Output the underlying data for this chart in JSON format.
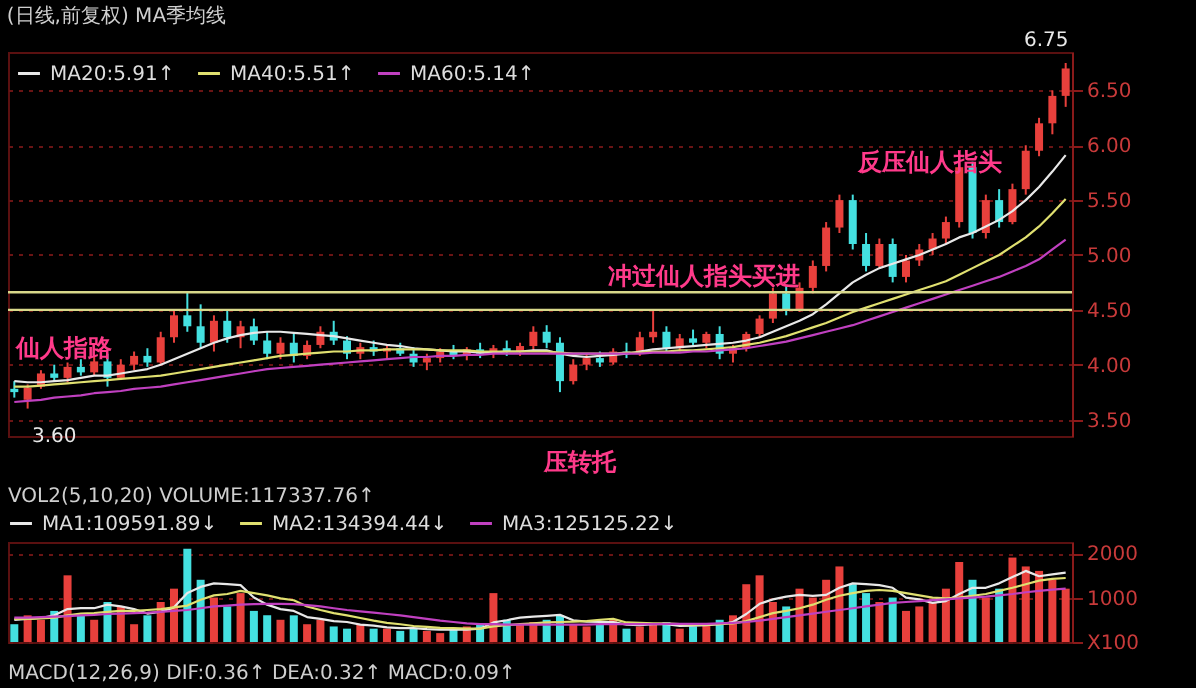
{
  "chart_data": [
    {
      "type": "candlestick",
      "title": "(日线,前复权) MA季均线",
      "categories": [
        null,
        null,
        null,
        null,
        null,
        null,
        null,
        null,
        null,
        null,
        null,
        null,
        null,
        null,
        null,
        null,
        null,
        null,
        null,
        null,
        null,
        null,
        null,
        null,
        null,
        null,
        null,
        null,
        null,
        null,
        null,
        null,
        null,
        null,
        null,
        null,
        null,
        null,
        null,
        null,
        null,
        null,
        null,
        null,
        null,
        null,
        null,
        null,
        null,
        null,
        null,
        null,
        null,
        null,
        null,
        null,
        null,
        null,
        null,
        null,
        null,
        null,
        null,
        null,
        null,
        null,
        null,
        null,
        null,
        null,
        null,
        null,
        null,
        null,
        null,
        null,
        null,
        null,
        null,
        null
      ],
      "ohlc": [
        [
          3.78,
          3.85,
          3.7,
          3.75
        ],
        [
          3.68,
          3.82,
          3.6,
          3.79
        ],
        [
          3.8,
          3.95,
          3.78,
          3.92
        ],
        [
          3.92,
          4.0,
          3.85,
          3.88
        ],
        [
          3.88,
          4.02,
          3.84,
          3.98
        ],
        [
          3.98,
          4.05,
          3.9,
          3.93
        ],
        [
          3.93,
          4.08,
          3.9,
          4.03
        ],
        [
          4.03,
          4.1,
          3.8,
          3.88
        ],
        [
          3.88,
          4.05,
          3.86,
          4.0
        ],
        [
          4.0,
          4.12,
          3.95,
          4.08
        ],
        [
          4.08,
          4.15,
          3.98,
          4.02
        ],
        [
          4.02,
          4.3,
          4.0,
          4.25
        ],
        [
          4.25,
          4.5,
          4.2,
          4.45
        ],
        [
          4.45,
          4.67,
          4.3,
          4.35
        ],
        [
          4.35,
          4.55,
          4.15,
          4.2
        ],
        [
          4.2,
          4.45,
          4.12,
          4.4
        ],
        [
          4.4,
          4.5,
          4.2,
          4.25
        ],
        [
          4.25,
          4.4,
          4.15,
          4.35
        ],
        [
          4.35,
          4.42,
          4.18,
          4.22
        ],
        [
          4.22,
          4.3,
          4.05,
          4.1
        ],
        [
          4.1,
          4.25,
          4.05,
          4.2
        ],
        [
          4.2,
          4.28,
          4.02,
          4.08
        ],
        [
          4.08,
          4.22,
          4.05,
          4.18
        ],
        [
          4.18,
          4.35,
          4.15,
          4.3
        ],
        [
          4.3,
          4.4,
          4.18,
          4.22
        ],
        [
          4.22,
          4.26,
          4.05,
          4.1
        ],
        [
          4.1,
          4.2,
          4.05,
          4.16
        ],
        [
          4.16,
          4.22,
          4.08,
          4.12
        ],
        [
          4.12,
          4.18,
          4.05,
          4.15
        ],
        [
          4.15,
          4.2,
          4.08,
          4.1
        ],
        [
          4.1,
          4.16,
          3.98,
          4.02
        ],
        [
          4.02,
          4.1,
          3.95,
          4.06
        ],
        [
          4.06,
          4.15,
          4.02,
          4.12
        ],
        [
          4.12,
          4.18,
          4.05,
          4.08
        ],
        [
          4.08,
          4.16,
          4.04,
          4.14
        ],
        [
          4.14,
          4.2,
          4.06,
          4.1
        ],
        [
          4.1,
          4.18,
          4.06,
          4.15
        ],
        [
          4.15,
          4.22,
          4.08,
          4.12
        ],
        [
          4.12,
          4.2,
          4.08,
          4.17
        ],
        [
          4.17,
          4.35,
          4.12,
          4.3
        ],
        [
          4.3,
          4.36,
          4.15,
          4.2
        ],
        [
          4.2,
          4.25,
          3.75,
          3.85
        ],
        [
          3.85,
          4.05,
          3.82,
          4.0
        ],
        [
          4.0,
          4.1,
          3.95,
          4.06
        ],
        [
          4.06,
          4.12,
          3.98,
          4.02
        ],
        [
          4.02,
          4.15,
          4.0,
          4.12
        ],
        [
          4.12,
          4.2,
          4.06,
          4.1
        ],
        [
          4.1,
          4.3,
          4.08,
          4.25
        ],
        [
          4.25,
          4.5,
          4.2,
          4.3
        ],
        [
          4.3,
          4.35,
          4.12,
          4.15
        ],
        [
          4.15,
          4.28,
          4.12,
          4.24
        ],
        [
          4.24,
          4.32,
          4.18,
          4.2
        ],
        [
          4.2,
          4.3,
          4.15,
          4.28
        ],
        [
          4.28,
          4.35,
          4.05,
          4.1
        ],
        [
          4.1,
          4.18,
          4.02,
          4.15
        ],
        [
          4.15,
          4.3,
          4.12,
          4.28
        ],
        [
          4.28,
          4.45,
          4.25,
          4.42
        ],
        [
          4.42,
          4.7,
          4.38,
          4.65
        ],
        [
          4.65,
          4.72,
          4.45,
          4.5
        ],
        [
          4.5,
          4.75,
          4.48,
          4.7
        ],
        [
          4.7,
          4.95,
          4.65,
          4.9
        ],
        [
          4.9,
          5.3,
          4.85,
          5.25
        ],
        [
          5.25,
          5.55,
          5.2,
          5.5
        ],
        [
          5.5,
          5.55,
          5.05,
          5.1
        ],
        [
          5.1,
          5.2,
          4.85,
          4.9
        ],
        [
          4.9,
          5.15,
          4.88,
          5.1
        ],
        [
          5.1,
          5.15,
          4.75,
          4.8
        ],
        [
          4.8,
          5.0,
          4.75,
          4.95
        ],
        [
          4.95,
          5.1,
          4.9,
          5.05
        ],
        [
          5.05,
          5.2,
          5.0,
          5.15
        ],
        [
          5.15,
          5.35,
          5.1,
          5.3
        ],
        [
          5.3,
          5.85,
          5.25,
          5.8
        ],
        [
          5.8,
          5.85,
          5.15,
          5.2
        ],
        [
          5.2,
          5.55,
          5.15,
          5.5
        ],
        [
          5.5,
          5.6,
          5.25,
          5.3
        ],
        [
          5.3,
          5.65,
          5.28,
          5.6
        ],
        [
          5.6,
          6.0,
          5.55,
          5.95
        ],
        [
          5.95,
          6.25,
          5.9,
          6.2
        ],
        [
          6.2,
          6.5,
          6.1,
          6.45
        ],
        [
          6.45,
          6.75,
          6.35,
          6.7
        ]
      ],
      "colors": [
        "#44e0e0",
        "#e8403c",
        "#e8403c",
        "#44e0e0",
        "#e8403c",
        "#44e0e0",
        "#e8403c",
        "#44e0e0",
        "#e8403c",
        "#e8403c",
        "#44e0e0",
        "#e8403c",
        "#e8403c",
        "#44e0e0",
        "#44e0e0",
        "#e8403c",
        "#44e0e0",
        "#e8403c",
        "#44e0e0",
        "#44e0e0",
        "#e8403c",
        "#44e0e0",
        "#e8403c",
        "#e8403c",
        "#44e0e0",
        "#44e0e0",
        "#e8403c",
        "#44e0e0",
        "#e8403c",
        "#44e0e0",
        "#44e0e0",
        "#e8403c",
        "#e8403c",
        "#44e0e0",
        "#e8403c",
        "#44e0e0",
        "#e8403c",
        "#44e0e0",
        "#e8403c",
        "#e8403c",
        "#44e0e0",
        "#44e0e0",
        "#e8403c",
        "#e8403c",
        "#44e0e0",
        "#e8403c",
        "#44e0e0",
        "#e8403c",
        "#e8403c",
        "#44e0e0",
        "#e8403c",
        "#44e0e0",
        "#e8403c",
        "#44e0e0",
        "#e8403c",
        "#e8403c",
        "#e8403c",
        "#e8403c",
        "#44e0e0",
        "#e8403c",
        "#e8403c",
        "#e8403c",
        "#e8403c",
        "#44e0e0",
        "#44e0e0",
        "#e8403c",
        "#44e0e0",
        "#e8403c",
        "#e8403c",
        "#e8403c",
        "#e8403c",
        "#e8403c",
        "#44e0e0",
        "#e8403c",
        "#44e0e0",
        "#e8403c",
        "#e8403c",
        "#e8403c",
        "#e8403c",
        "#e8403c"
      ],
      "series": [
        {
          "name": "MA20:5.91↑",
          "type": "line",
          "color": "#e8e8e8",
          "values": [
            3.85,
            3.84,
            3.84,
            3.85,
            3.86,
            3.88,
            3.9,
            3.9,
            3.92,
            3.94,
            3.96,
            4.0,
            4.05,
            4.1,
            4.15,
            4.2,
            4.24,
            4.27,
            4.29,
            4.3,
            4.3,
            4.29,
            4.28,
            4.27,
            4.26,
            4.24,
            4.22,
            4.2,
            4.18,
            4.17,
            4.15,
            4.14,
            4.13,
            4.12,
            4.12,
            4.11,
            4.11,
            4.12,
            4.12,
            4.13,
            4.13,
            4.1,
            4.08,
            4.07,
            4.08,
            4.09,
            4.1,
            4.12,
            4.14,
            4.15,
            4.16,
            4.17,
            4.18,
            4.19,
            4.2,
            4.22,
            4.25,
            4.3,
            4.35,
            4.4,
            4.46,
            4.55,
            4.65,
            4.75,
            4.82,
            4.88,
            4.92,
            4.96,
            5.0,
            5.05,
            5.1,
            5.16,
            5.2,
            5.26,
            5.32,
            5.4,
            5.5,
            5.62,
            5.76,
            5.91
          ]
        },
        {
          "name": "MA40:5.51↑",
          "type": "line",
          "color": "#e0e070",
          "values": [
            3.8,
            3.8,
            3.81,
            3.82,
            3.83,
            3.84,
            3.85,
            3.86,
            3.87,
            3.88,
            3.89,
            3.9,
            3.92,
            3.94,
            3.96,
            3.98,
            4.0,
            4.02,
            4.04,
            4.06,
            4.08,
            4.09,
            4.1,
            4.11,
            4.12,
            4.12,
            4.13,
            4.13,
            4.14,
            4.14,
            4.14,
            4.14,
            4.13,
            4.13,
            4.13,
            4.12,
            4.12,
            4.12,
            4.12,
            4.12,
            4.12,
            4.11,
            4.1,
            4.1,
            4.1,
            4.1,
            4.11,
            4.11,
            4.12,
            4.12,
            4.13,
            4.13,
            4.14,
            4.15,
            4.16,
            4.18,
            4.2,
            4.23,
            4.26,
            4.3,
            4.34,
            4.38,
            4.43,
            4.48,
            4.52,
            4.56,
            4.6,
            4.64,
            4.68,
            4.72,
            4.76,
            4.82,
            4.88,
            4.94,
            5.0,
            5.08,
            5.16,
            5.26,
            5.38,
            5.51
          ]
        },
        {
          "name": "MA60:5.14↑",
          "type": "line",
          "color": "#c040c0",
          "values": [
            3.66,
            3.67,
            3.68,
            3.7,
            3.71,
            3.72,
            3.74,
            3.75,
            3.76,
            3.78,
            3.79,
            3.8,
            3.82,
            3.84,
            3.86,
            3.88,
            3.9,
            3.92,
            3.94,
            3.96,
            3.97,
            3.98,
            3.99,
            4.0,
            4.01,
            4.02,
            4.03,
            4.04,
            4.05,
            4.06,
            4.07,
            4.07,
            4.08,
            4.08,
            4.09,
            4.09,
            4.1,
            4.1,
            4.1,
            4.1,
            4.1,
            4.1,
            4.1,
            4.1,
            4.1,
            4.1,
            4.1,
            4.1,
            4.11,
            4.11,
            4.11,
            4.12,
            4.12,
            4.13,
            4.14,
            4.15,
            4.17,
            4.19,
            4.21,
            4.24,
            4.27,
            4.3,
            4.33,
            4.36,
            4.4,
            4.44,
            4.48,
            4.52,
            4.56,
            4.6,
            4.64,
            4.68,
            4.72,
            4.76,
            4.8,
            4.85,
            4.9,
            4.96,
            5.05,
            5.14
          ]
        }
      ],
      "ylim": [
        3.35,
        6.85
      ],
      "yticks": [
        {
          "value": 3.5,
          "label": "3.50"
        },
        {
          "value": 4,
          "label": "4.00"
        },
        {
          "value": 4.5,
          "label": "4.50"
        },
        {
          "value": 5,
          "label": "5.00"
        },
        {
          "value": 5.5,
          "label": "5.50"
        },
        {
          "value": 6,
          "label": "6.00"
        },
        {
          "value": 6.5,
          "label": "6.50"
        }
      ],
      "ref_lines": [
        {
          "axis": "y",
          "value": 4.66,
          "color": "#d8d88a"
        },
        {
          "axis": "y",
          "value": 4.5,
          "color": "#d8d88a"
        }
      ],
      "annotations": [
        "仙人指路",
        "冲过仙人指头买进",
        "反压仙人指头",
        "压转托",
        "3.60",
        "6.75"
      ],
      "grid": "y",
      "legend": "top left"
    },
    {
      "type": "bar",
      "title": "VOL2(5,10,20) VOLUME:117337.76↑",
      "categories": [
        null,
        null,
        null,
        null,
        null,
        null,
        null,
        null,
        null,
        null,
        null,
        null,
        null,
        null,
        null,
        null,
        null,
        null,
        null,
        null,
        null,
        null,
        null,
        null,
        null,
        null,
        null,
        null,
        null,
        null,
        null,
        null,
        null,
        null,
        null,
        null,
        null,
        null,
        null,
        null,
        null,
        null,
        null,
        null,
        null,
        null,
        null,
        null,
        null,
        null,
        null,
        null,
        null,
        null,
        null,
        null,
        null,
        null,
        null,
        null,
        null,
        null,
        null,
        null,
        null,
        null,
        null,
        null,
        null,
        null,
        null,
        null,
        null,
        null,
        null,
        null,
        null,
        null,
        null,
        null
      ],
      "series": [
        {
          "type": "bar",
          "colors": [
            "#44e0e0",
            "#e8403c",
            "#e8403c",
            "#44e0e0",
            "#e8403c",
            "#44e0e0",
            "#e8403c",
            "#44e0e0",
            "#e8403c",
            "#e8403c",
            "#44e0e0",
            "#e8403c",
            "#e8403c",
            "#44e0e0",
            "#44e0e0",
            "#e8403c",
            "#44e0e0",
            "#e8403c",
            "#44e0e0",
            "#44e0e0",
            "#e8403c",
            "#44e0e0",
            "#e8403c",
            "#e8403c",
            "#44e0e0",
            "#44e0e0",
            "#e8403c",
            "#44e0e0",
            "#e8403c",
            "#44e0e0",
            "#44e0e0",
            "#e8403c",
            "#e8403c",
            "#44e0e0",
            "#e8403c",
            "#44e0e0",
            "#e8403c",
            "#44e0e0",
            "#e8403c",
            "#e8403c",
            "#44e0e0",
            "#44e0e0",
            "#e8403c",
            "#e8403c",
            "#44e0e0",
            "#e8403c",
            "#44e0e0",
            "#e8403c",
            "#e8403c",
            "#44e0e0",
            "#e8403c",
            "#44e0e0",
            "#e8403c",
            "#44e0e0",
            "#e8403c",
            "#e8403c",
            "#e8403c",
            "#e8403c",
            "#44e0e0",
            "#e8403c",
            "#e8403c",
            "#e8403c",
            "#e8403c",
            "#44e0e0",
            "#44e0e0",
            "#e8403c",
            "#44e0e0",
            "#e8403c",
            "#e8403c",
            "#e8403c",
            "#e8403c",
            "#e8403c",
            "#44e0e0",
            "#e8403c",
            "#44e0e0",
            "#e8403c",
            "#e8403c",
            "#e8403c",
            "#e8403c",
            "#e8403c"
          ],
          "values": [
            400,
            600,
            500,
            700,
            1500,
            600,
            500,
            900,
            800,
            400,
            600,
            900,
            1200,
            2100,
            1400,
            1000,
            800,
            1100,
            700,
            600,
            500,
            600,
            400,
            500,
            350,
            300,
            400,
            300,
            300,
            250,
            300,
            250,
            200,
            300,
            350,
            400,
            1100,
            500,
            400,
            450,
            500,
            600,
            400,
            350,
            400,
            500,
            300,
            350,
            400,
            450,
            300,
            350,
            400,
            500,
            600,
            1300,
            1500,
            900,
            800,
            1200,
            1000,
            1400,
            1700,
            1300,
            1100,
            900,
            1000,
            700,
            800,
            900,
            1200,
            1800,
            1400,
            1000,
            1200,
            1900,
            1700,
            1600,
            1400,
            1200
          ]
        },
        {
          "name": "MA1:109591.89↓",
          "type": "line",
          "color": "#e8e8e8",
          "values": [
            500,
            520,
            540,
            600,
            740,
            760,
            760,
            840,
            800,
            740,
            640,
            680,
            780,
            1100,
            1240,
            1320,
            1300,
            1280,
            1000,
            840,
            740,
            700,
            560,
            520,
            470,
            450,
            390,
            370,
            330,
            310,
            310,
            290,
            280,
            280,
            280,
            300,
            440,
            490,
            550,
            570,
            590,
            610,
            490,
            460,
            450,
            450,
            390,
            380,
            400,
            400,
            360,
            370,
            380,
            400,
            450,
            630,
            860,
            960,
            1020,
            1060,
            1040,
            1060,
            1220,
            1320,
            1300,
            1280,
            1220,
            1000,
            960,
            880,
            920,
            1080,
            1220,
            1220,
            1320,
            1460,
            1600,
            1480,
            1520,
            1560
          ]
        },
        {
          "name": "MA2:134394.44↓",
          "type": "line",
          "color": "#e0e070",
          "values": [
            520,
            520,
            530,
            550,
            600,
            640,
            650,
            680,
            700,
            700,
            720,
            740,
            780,
            820,
            950,
            1050,
            1080,
            1150,
            1100,
            1050,
            980,
            940,
            800,
            720,
            650,
            600,
            540,
            480,
            430,
            400,
            360,
            340,
            320,
            310,
            300,
            300,
            350,
            380,
            400,
            420,
            440,
            450,
            460,
            470,
            500,
            520,
            440,
            430,
            420,
            420,
            400,
            390,
            390,
            400,
            420,
            470,
            560,
            650,
            700,
            760,
            840,
            950,
            1040,
            1100,
            1150,
            1170,
            1150,
            1100,
            1050,
            1000,
            980,
            1000,
            1040,
            1080,
            1150,
            1220,
            1300,
            1380,
            1420,
            1440
          ]
        },
        {
          "name": "MA3:125125.22↓",
          "type": "line",
          "color": "#c040c0",
          "values": [
            550,
            550,
            560,
            570,
            580,
            600,
            610,
            630,
            640,
            650,
            660,
            680,
            700,
            720,
            760,
            800,
            820,
            840,
            850,
            860,
            860,
            850,
            830,
            800,
            760,
            720,
            690,
            660,
            630,
            600,
            560,
            520,
            480,
            450,
            420,
            400,
            400,
            390,
            390,
            390,
            390,
            390,
            390,
            390,
            400,
            400,
            400,
            400,
            400,
            410,
            410,
            410,
            410,
            420,
            430,
            450,
            480,
            520,
            560,
            600,
            640,
            680,
            720,
            760,
            800,
            840,
            880,
            900,
            920,
            940,
            960,
            980,
            1000,
            1020,
            1050,
            1080,
            1120,
            1150,
            1180,
            1200
          ]
        }
      ],
      "ylim": [
        0,
        2250
      ],
      "yticks": [
        {
          "value": 0,
          "label": "X100"
        },
        1000,
        2000
      ],
      "grid": "y",
      "legend": "top"
    },
    {
      "type": "other",
      "title": "MACD(12,26,9) DIF:0.36↑ DEA:0.32↑ MACD:0.09↑"
    }
  ]
}
